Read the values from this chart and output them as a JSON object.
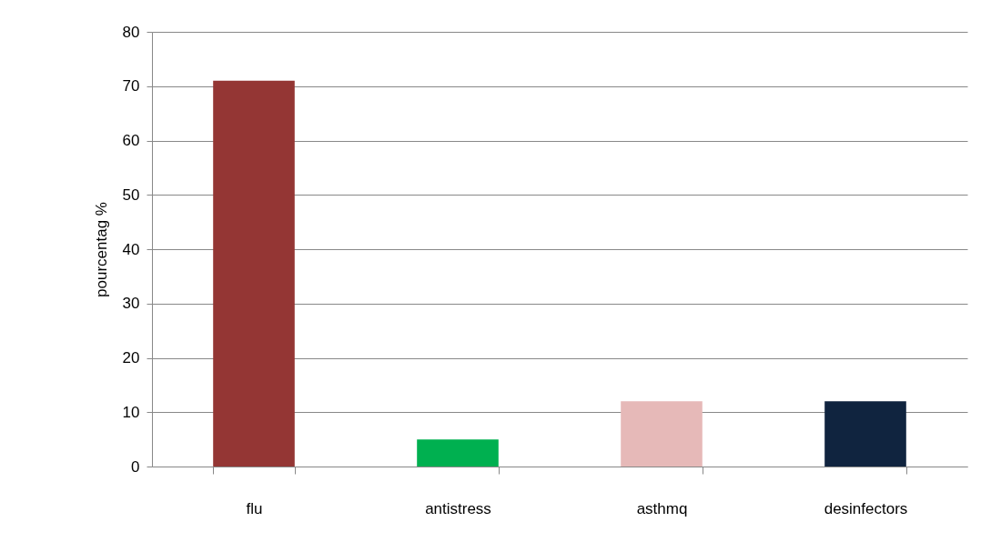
{
  "chart_data": {
    "type": "bar",
    "ylabel": "pourcentag %",
    "categories": [
      "flu",
      "antistress",
      "asthmq",
      "desinfectors"
    ],
    "values": [
      71,
      5,
      12,
      12
    ],
    "colors": [
      "#943634",
      "#00b050",
      "#e6b9b8",
      "#10243f"
    ],
    "ylim": [
      0,
      80
    ],
    "yticks": [
      0,
      10,
      20,
      30,
      40,
      50,
      60,
      70,
      80
    ],
    "grid": "y"
  }
}
